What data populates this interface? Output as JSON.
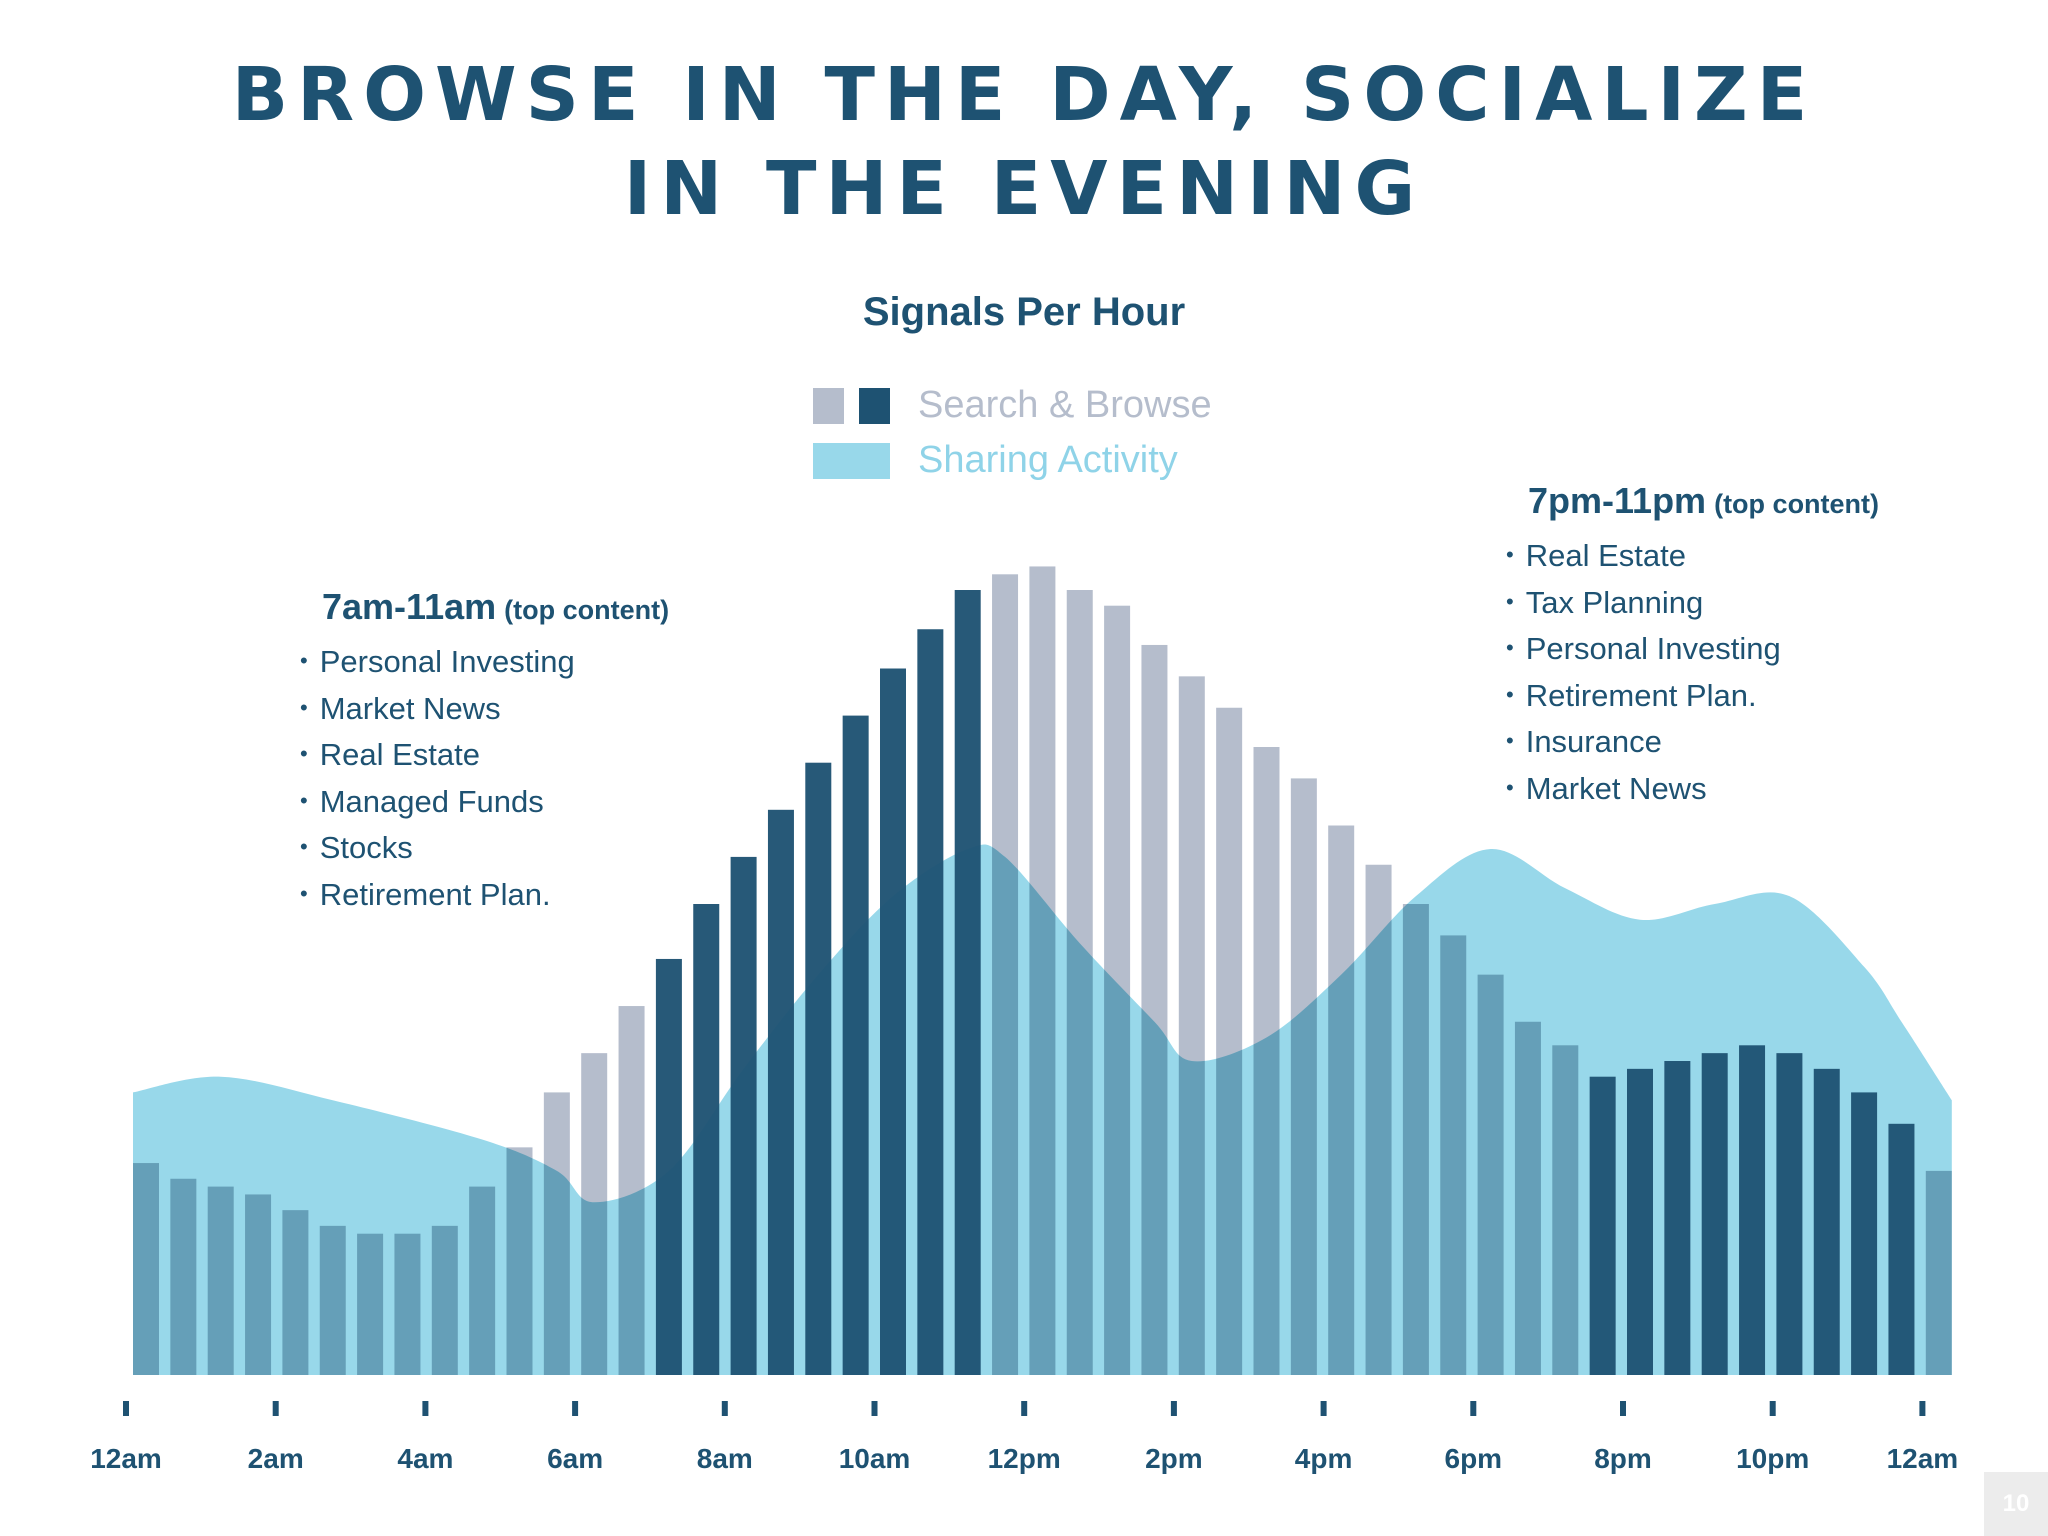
{
  "title": {
    "line1": "BROWSE IN THE DAY, SOCIALIZE",
    "line2": "IN THE EVENING"
  },
  "chart_data": {
    "type": "bar",
    "title": "Signals Per Hour",
    "legend": [
      {
        "label": "Search & Browse",
        "colors": [
          "#b5bdcc",
          "#1e5272"
        ]
      },
      {
        "label": "Sharing Activity",
        "color": "#98d8ea"
      }
    ],
    "x_tick_labels": [
      "12am",
      "2am",
      "4am",
      "6am",
      "8am",
      "10am",
      "12pm",
      "2pm",
      "4pm",
      "6pm",
      "8pm",
      "10pm",
      "12am"
    ],
    "ylim": [
      0,
      100
    ],
    "series": [
      {
        "name": "Search & Browse",
        "type": "bar",
        "values": [
          27,
          25,
          24,
          23,
          21,
          19,
          18,
          18,
          19,
          24,
          29,
          36,
          41,
          47,
          53,
          60,
          66,
          72,
          78,
          84,
          90,
          95,
          100,
          102,
          103,
          100,
          98,
          93,
          89,
          85,
          80,
          76,
          70,
          65,
          60,
          56,
          51,
          45,
          42,
          38,
          39,
          40,
          41,
          42,
          41,
          39,
          36,
          32,
          26
        ],
        "highlight_ranges": [
          [
            14,
            22
          ],
          [
            39,
            47
          ]
        ]
      },
      {
        "name": "Sharing Activity",
        "type": "area",
        "x": [
          0,
          2,
          5,
          9,
          11,
          12,
          14,
          16,
          18,
          20,
          22,
          23,
          25,
          27,
          28,
          30,
          32,
          34,
          36,
          38,
          40,
          42,
          44,
          46,
          47,
          48
        ],
        "values": [
          36,
          38,
          35,
          30,
          26,
          22,
          26,
          39,
          51,
          61,
          67,
          66,
          55,
          45,
          40,
          43,
          51,
          61,
          67,
          62,
          58,
          60,
          61,
          52,
          45,
          35
        ]
      }
    ],
    "annotations": [
      {
        "heading": "7am-11am",
        "note": "(top content)",
        "items": [
          "Personal Investing",
          "Market News",
          "Real Estate",
          "Managed Funds",
          "Stocks",
          "Retirement Plan."
        ]
      },
      {
        "heading": "7pm-11pm",
        "note": "(top content)",
        "items": [
          "Real Estate",
          "Tax Planning",
          "Personal Investing",
          "Retirement Plan.",
          "Insurance",
          "Market News"
        ]
      }
    ]
  },
  "colors": {
    "title": "#1e5272",
    "bar_light": "#b5bdcc",
    "bar_dark": "#1e5272",
    "area": "#98d8ea",
    "area_label": "#8fd3e8",
    "legend_browse_label": "#b5bdcc"
  },
  "page_number": "10"
}
